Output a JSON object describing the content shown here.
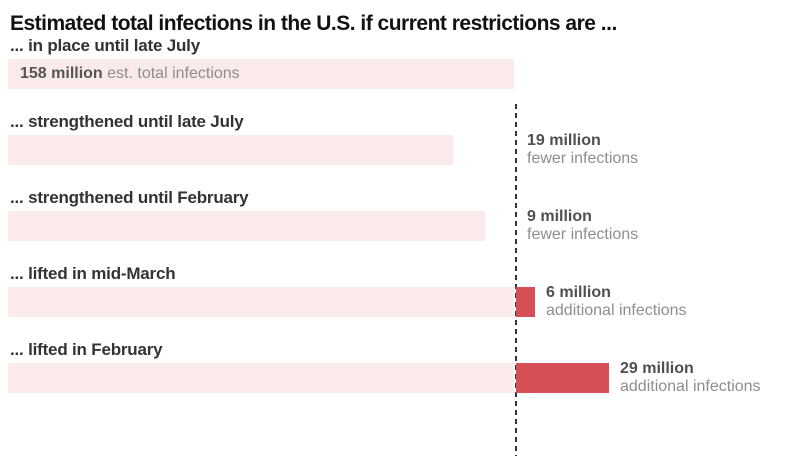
{
  "chart_data": {
    "type": "bar",
    "title": "Estimated total infections in the U.S. if current restrictions are ...",
    "unit": "millions of estimated infections",
    "baseline": {
      "value": 158,
      "marker": "dashed-line-at-158-million"
    },
    "categories": [
      "... in place until late July",
      "... strengthened until late July",
      "... strengthened until February",
      "... lifted in mid-March",
      "... lifted in February"
    ],
    "values": [
      158,
      139,
      149,
      164,
      187
    ],
    "deltas_vs_baseline": [
      0,
      -19,
      -9,
      6,
      29
    ],
    "rows": [
      {
        "label": "... in place until late July",
        "total": 158,
        "delta": 0,
        "bar_label_bold": "158 million",
        "bar_label_rest": "est. total infections"
      },
      {
        "label": "... strengthened until late July",
        "total": 139,
        "delta": -19,
        "note_bold": "19 million",
        "note_rest": "fewer infections"
      },
      {
        "label": "... strengthened until February",
        "total": 149,
        "delta": -9,
        "note_bold": "9 million",
        "note_rest": "fewer infections"
      },
      {
        "label": "... lifted in mid-March",
        "total": 164,
        "delta": 6,
        "note_bold": "6 million",
        "note_rest": "additional infections"
      },
      {
        "label": "... lifted in February",
        "total": 187,
        "delta": 29,
        "note_bold": "29 million",
        "note_rest": "additional infections"
      }
    ],
    "colors": {
      "bar": "#faeaea",
      "additional": "#d55056",
      "dashed_line": "#333333",
      "title_text": "#121212",
      "label_text": "#333333",
      "value_bold_text": "#4f4f4f",
      "value_muted_text": "#8e8e8e"
    },
    "layout": {
      "orientation": "horizontal",
      "grid": false,
      "legend": false,
      "xlim_millions": [
        0,
        243
      ]
    }
  }
}
